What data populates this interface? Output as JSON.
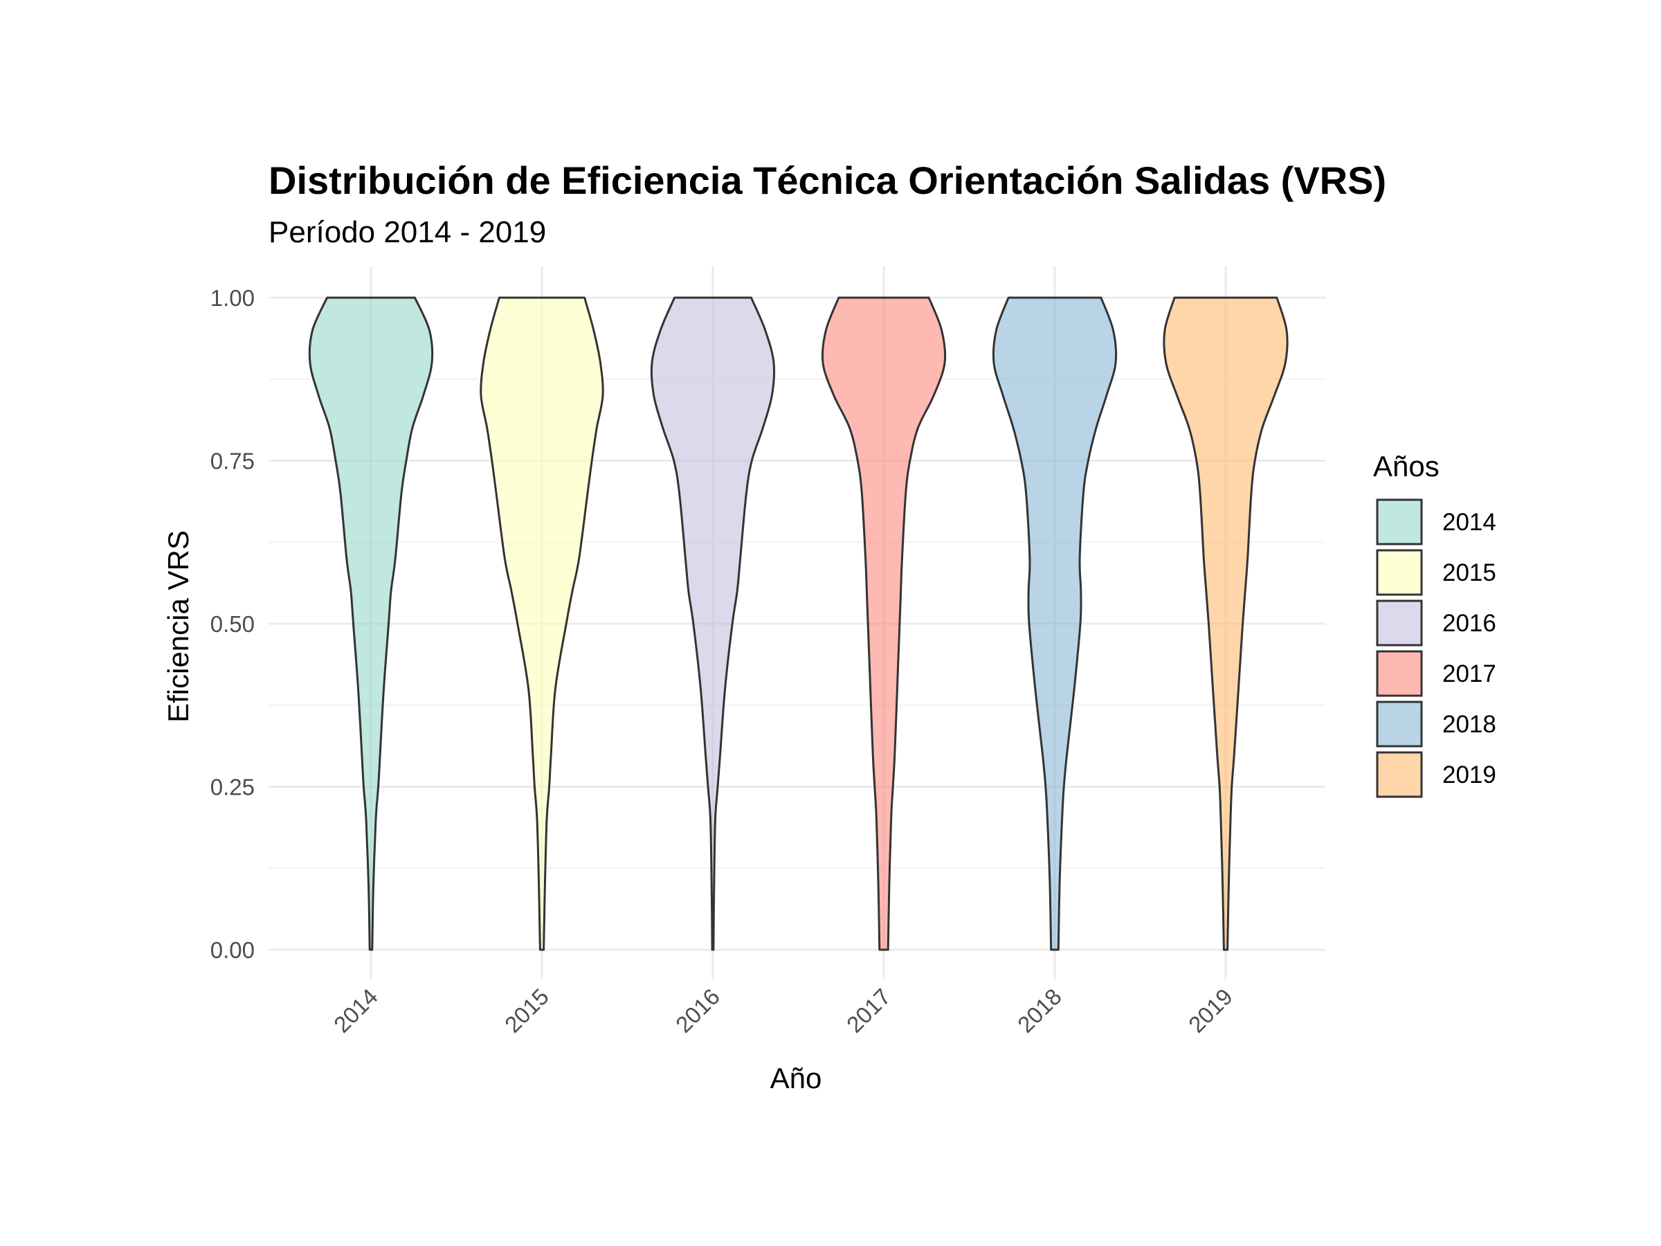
{
  "chart_data": {
    "type": "violin",
    "title": "Distribución de Eficiencia Técnica Orientación Salidas (VRS)",
    "subtitle": "Período 2014 - 2019",
    "xlabel": "Año",
    "ylabel": "Eficiencia VRS",
    "ylim": [
      0,
      1
    ],
    "y_ticks": [
      "0.00",
      "0.25",
      "0.50",
      "0.75",
      "1.00"
    ],
    "y_tick_values": [
      0,
      0.25,
      0.5,
      0.75,
      1.0
    ],
    "categories": [
      "2014",
      "2015",
      "2016",
      "2017",
      "2018",
      "2019"
    ],
    "legend": {
      "title": "Años",
      "position": "right",
      "entries": [
        "2014",
        "2015",
        "2016",
        "2017",
        "2018",
        "2019"
      ]
    },
    "colors": [
      "#8DD3C7",
      "#FFFFB3",
      "#BEBADA",
      "#FB8072",
      "#80B1D3",
      "#FDB462"
    ],
    "fill_alpha": 0.55,
    "grid": true,
    "density_levels": [
      0,
      0.1,
      0.2,
      0.25,
      0.3,
      0.4,
      0.5,
      0.55,
      0.6,
      0.7,
      0.75,
      0.8,
      0.85,
      0.9,
      0.95,
      1.0
    ],
    "series": [
      {
        "name": "2014",
        "relative_width": [
          0.02,
          0.04,
          0.08,
          0.12,
          0.15,
          0.21,
          0.29,
          0.33,
          0.4,
          0.5,
          0.58,
          0.68,
          0.86,
          1.0,
          0.96,
          0.72
        ]
      },
      {
        "name": "2015",
        "relative_width": [
          0.03,
          0.05,
          0.08,
          0.12,
          0.15,
          0.22,
          0.4,
          0.5,
          0.61,
          0.75,
          0.82,
          0.9,
          1.0,
          0.96,
          0.85,
          0.7
        ]
      },
      {
        "name": "2016",
        "relative_width": [
          0.01,
          0.02,
          0.04,
          0.08,
          0.12,
          0.2,
          0.32,
          0.4,
          0.45,
          0.55,
          0.64,
          0.82,
          0.97,
          1.0,
          0.86,
          0.63
        ]
      },
      {
        "name": "2017",
        "relative_width": [
          0.07,
          0.09,
          0.12,
          0.15,
          0.18,
          0.22,
          0.26,
          0.28,
          0.3,
          0.36,
          0.43,
          0.56,
          0.82,
          1.0,
          0.95,
          0.74
        ]
      },
      {
        "name": "2018",
        "relative_width": [
          0.06,
          0.08,
          0.12,
          0.15,
          0.2,
          0.32,
          0.42,
          0.43,
          0.41,
          0.47,
          0.55,
          0.68,
          0.85,
          1.0,
          0.96,
          0.76
        ]
      },
      {
        "name": "2019",
        "relative_width": [
          0.03,
          0.05,
          0.08,
          0.1,
          0.14,
          0.21,
          0.28,
          0.32,
          0.36,
          0.42,
          0.48,
          0.6,
          0.8,
          0.98,
          1.0,
          0.84
        ]
      }
    ]
  }
}
